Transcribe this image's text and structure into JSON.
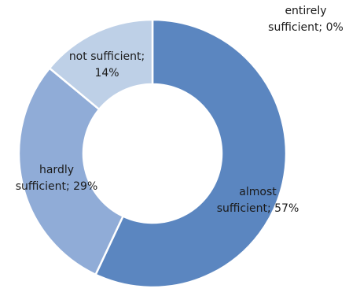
{
  "chart_data": {
    "type": "pie",
    "variant": "doughnut",
    "categories": [
      "almost sufficient",
      "hardly sufficient",
      "not sufficient",
      "entirely sufficient"
    ],
    "values": [
      57,
      29,
      14,
      0
    ],
    "colors": [
      "#5b86c0",
      "#90acd7",
      "#bed0e7",
      "#e4ecf6"
    ],
    "labels": [
      [
        "almost",
        "sufficient; 57%"
      ],
      [
        "hardly",
        "sufficient; 29%"
      ],
      [
        "not sufficient;",
        "14%"
      ],
      [
        "entirely",
        "sufficient; 0%"
      ]
    ],
    "legend": "none",
    "grid": false
  }
}
